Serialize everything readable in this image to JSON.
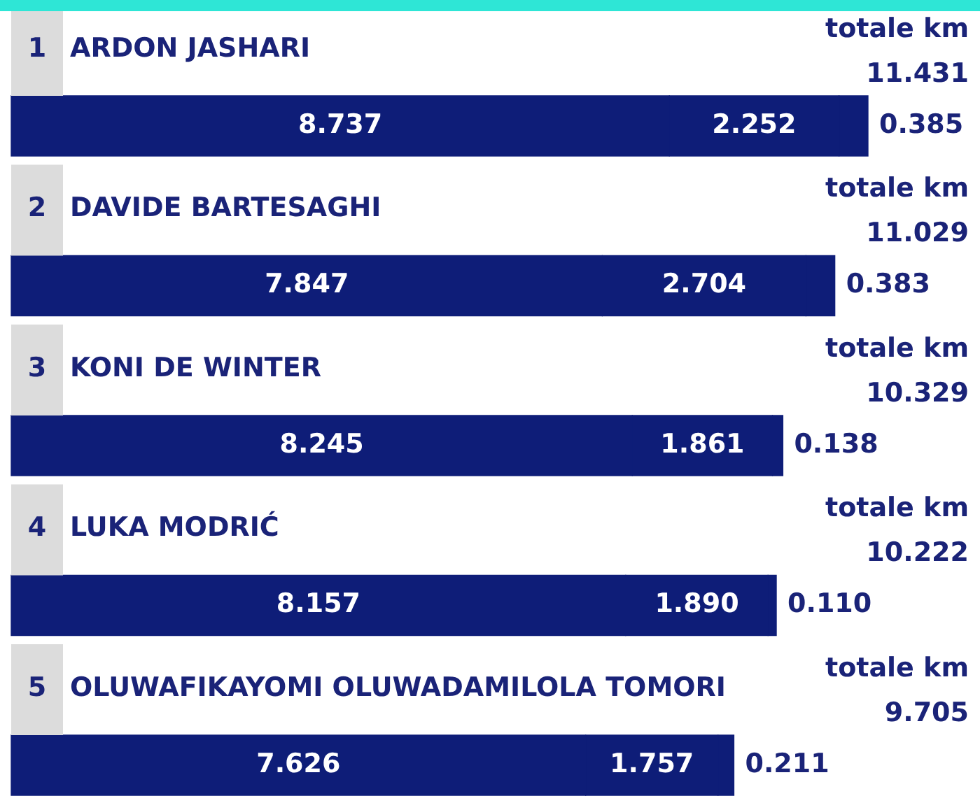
{
  "chart_data": {
    "type": "bar",
    "orientation": "horizontal",
    "stacked": true,
    "legend": false,
    "categories": [
      "ARDON JASHARI",
      "DAVIDE BARTESAGHI",
      "KONI DE WINTER",
      "LUKA MODRIĆ",
      "OLUWAFIKAYOMI OLUWADAMILOLA TOMORI"
    ],
    "series": [
      {
        "color": "#0e1d78",
        "values": [
          8.737,
          7.847,
          8.245,
          8.157,
          7.626
        ],
        "value_labels": [
          "8.737",
          "7.847",
          "8.245",
          "8.157",
          "7.626"
        ]
      },
      {
        "color": "#0e1d78",
        "values": [
          2.252,
          2.704,
          1.861,
          1.89,
          1.757
        ],
        "value_labels": [
          "2.252",
          "2.704",
          "1.861",
          "1.890",
          "1.757"
        ]
      },
      {
        "color": "#0e1d78",
        "values": [
          0.385,
          0.383,
          0.138,
          0.11,
          0.211
        ],
        "value_labels": [
          "0.385",
          "0.383",
          "0.138",
          "0.110",
          "0.211"
        ]
      }
    ],
    "annotations": [
      "1",
      "totale km",
      "11.431",
      "2",
      "totale km",
      "11.029",
      "3",
      "totale km",
      "10.329",
      "4",
      "totale km",
      "10.222",
      "5",
      "totale km",
      "9.705"
    ]
  }
}
